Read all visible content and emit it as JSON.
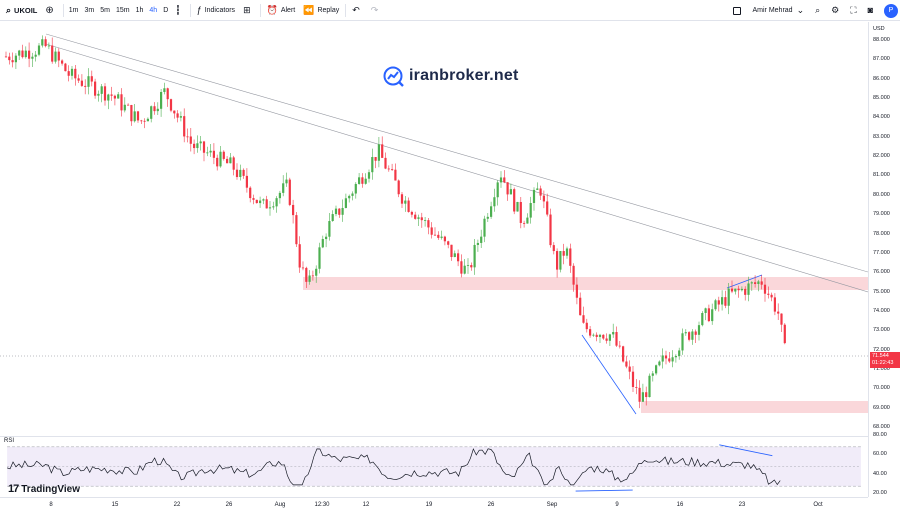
{
  "toolbar": {
    "symbol": "UKOIL",
    "timeframes": [
      "1m",
      "3m",
      "5m",
      "15m",
      "1h",
      "4h",
      "D"
    ],
    "active_timeframe": "4h",
    "indicators_label": "Indicators",
    "alert_label": "Alert",
    "replay_label": "Replay",
    "user_name": "Amir Mehrad",
    "publish_initial": "P"
  },
  "watermark": {
    "text": "iranbroker.net"
  },
  "brand": {
    "text": "TradingView"
  },
  "rsi": {
    "label": "RSI"
  },
  "colors": {
    "up": "#26a69a",
    "up_body": "#4caf50",
    "down": "#f23645",
    "zone": "#f8c9ce",
    "accent": "#2962ff",
    "rsi_band": "#e8e0f5"
  },
  "price_axis": {
    "currency": "USD",
    "ticks": [
      "88.000",
      "87.000",
      "86.000",
      "85.000",
      "84.000",
      "83.000",
      "82.000",
      "81.000",
      "80.000",
      "79.000",
      "78.000",
      "77.000",
      "76.000",
      "75.000",
      "74.000",
      "73.000",
      "72.000",
      "71.000",
      "70.000",
      "69.000",
      "68.000"
    ],
    "last_price": "71.544",
    "countdown": "01:22:43",
    "rsi_ticks": [
      "80.00",
      "60.00",
      "40.00",
      "20.00"
    ]
  },
  "time_axis": {
    "labels": [
      "8",
      "15",
      "22",
      "26",
      "Aug",
      "12:30",
      "12",
      "19",
      "26",
      "Sep",
      "9",
      "16",
      "23",
      "Oct"
    ]
  },
  "chart_data": {
    "type": "candlestick",
    "symbol": "UKOIL",
    "interval": "4h",
    "ylim": [
      68,
      88
    ],
    "anchors": [
      {
        "x": "Jul 8",
        "y": 87.2
      },
      {
        "x": "Jul 9",
        "y": 87.7
      },
      {
        "x": "Jul 11",
        "y": 86.2
      },
      {
        "x": "Jul 15",
        "y": 85.2
      },
      {
        "x": "Jul 17",
        "y": 83.8
      },
      {
        "x": "Jul 19",
        "y": 85.4
      },
      {
        "x": "Jul 22",
        "y": 82.6
      },
      {
        "x": "Jul 26",
        "y": 81.5
      },
      {
        "x": "Jul 29",
        "y": 79.4
      },
      {
        "x": "Jul 31",
        "y": 80.5
      },
      {
        "x": "Aug 2",
        "y": 76.5
      },
      {
        "x": "Aug 5",
        "y": 75.2
      },
      {
        "x": "Aug 7",
        "y": 78.2
      },
      {
        "x": "Aug 12",
        "y": 82.3
      },
      {
        "x": "Aug 15",
        "y": 79.8
      },
      {
        "x": "Aug 19",
        "y": 77.5
      },
      {
        "x": "Aug 22",
        "y": 76.0
      },
      {
        "x": "Aug 26",
        "y": 81.3
      },
      {
        "x": "Aug 30",
        "y": 78.7
      },
      {
        "x": "Sep 2",
        "y": 80.5
      },
      {
        "x": "Sep 4",
        "y": 76.3
      },
      {
        "x": "Sep 5",
        "y": 77.3
      },
      {
        "x": "Sep 7",
        "y": 73.2
      },
      {
        "x": "Sep 9",
        "y": 72.8
      },
      {
        "x": "Sep 11",
        "y": 69.4
      },
      {
        "x": "Sep 14",
        "y": 71.4
      },
      {
        "x": "Sep 17",
        "y": 73.5
      },
      {
        "x": "Sep 20",
        "y": 74.8
      },
      {
        "x": "Sep 24",
        "y": 75.6
      },
      {
        "x": "Sep 26",
        "y": 74.0
      },
      {
        "x": "Sep 27",
        "y": 71.6
      }
    ],
    "resistance_zone": [
      75.0,
      75.6
    ],
    "support_zone": [
      68.8,
      69.2
    ],
    "rsi_ylim": [
      20,
      80
    ]
  }
}
